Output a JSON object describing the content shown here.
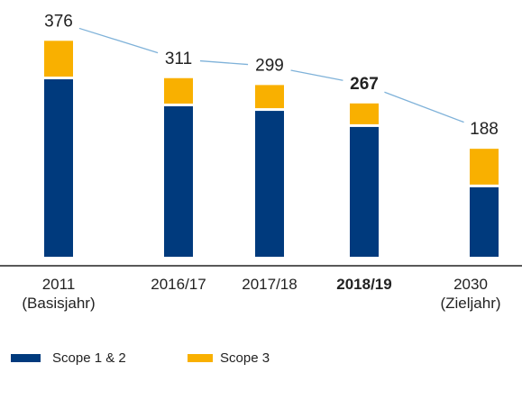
{
  "chart_data": {
    "type": "stacked_bar",
    "categories": [
      "2011\n(Basisjahr)",
      "2016/17",
      "2017/18",
      "2018/19",
      "2030\n(Zieljahr)"
    ],
    "series": [
      {
        "name": "Scope 1 & 2",
        "color": "#003a7d",
        "values": [
          309,
          262,
          254,
          226,
          121
        ]
      },
      {
        "name": "Scope 3",
        "color": "#f9b000",
        "values": [
          67,
          49,
          45,
          41,
          67
        ]
      }
    ],
    "totals": [
      376,
      311,
      299,
      267,
      188
    ],
    "highlight_index": 3,
    "line_color": "#7fb2d9",
    "ylim": [
      0,
      400
    ]
  }
}
